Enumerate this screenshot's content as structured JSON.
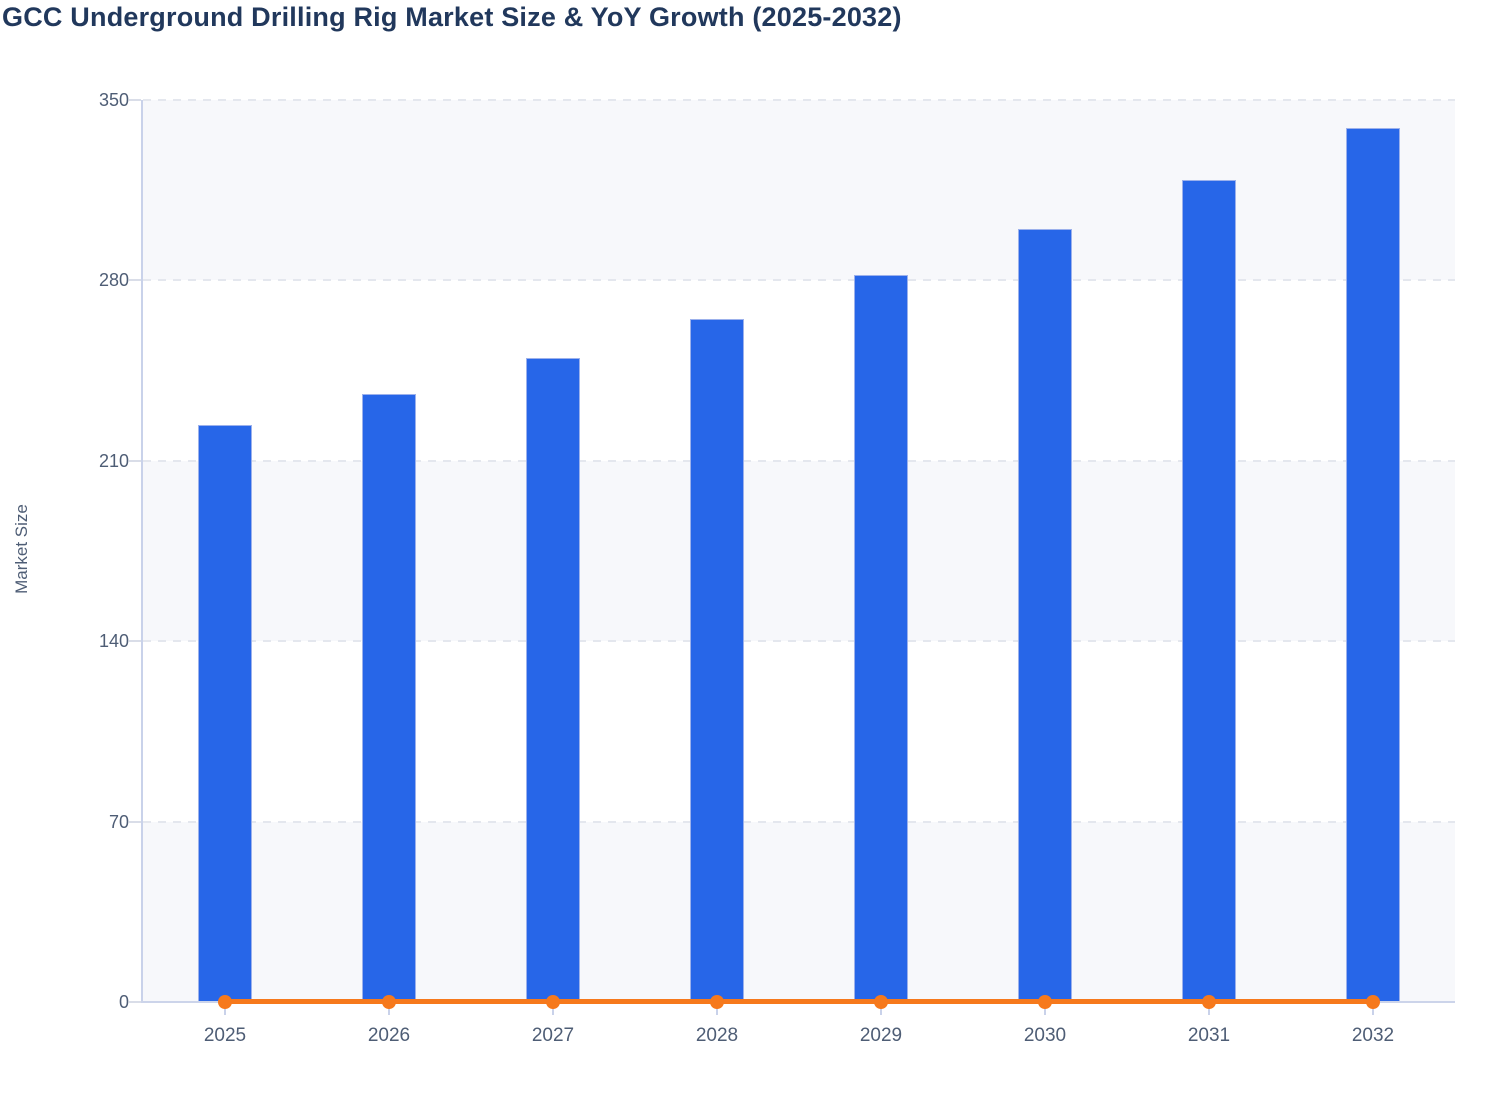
{
  "title": "GCC Underground Drilling Rig Market Size & YoY Growth (2025-2032)",
  "colors": {
    "title_text": "#21385c",
    "axis_text": "#4e5d75",
    "axis_line": "#ccd4ea",
    "gridline": "#e4e7ee",
    "band_stripe": "#f7f8fb",
    "bar_fill": "#2766e8",
    "bar_border": "#9cb1ec",
    "line_orange": "#f6791c"
  },
  "chart_data": {
    "type": "bar",
    "title": "GCC Underground Drilling Rig Market Size & YoY Growth (2025-2032)",
    "categories": [
      "2025",
      "2026",
      "2027",
      "2028",
      "2029",
      "2030",
      "2031",
      "2032"
    ],
    "series": [
      {
        "name": "Market Size",
        "type": "bar",
        "color": "#2766e8",
        "values": [
          224,
          236,
          250,
          265,
          282,
          300,
          319,
          339
        ]
      },
      {
        "name": "YoY Growth",
        "type": "line",
        "color": "#f6791c",
        "values": [
          0,
          0,
          0,
          0,
          0,
          0,
          0,
          0
        ]
      }
    ],
    "xlabel": "",
    "ylabel": "Market Size",
    "ylim": [
      0,
      350
    ],
    "yticks": [
      0,
      70,
      140,
      210,
      280,
      350
    ],
    "legend_position": "none",
    "grid": "horizontal-dashed",
    "background_bands": "alternating horizontal stripes (grey/white) between gridlines"
  }
}
